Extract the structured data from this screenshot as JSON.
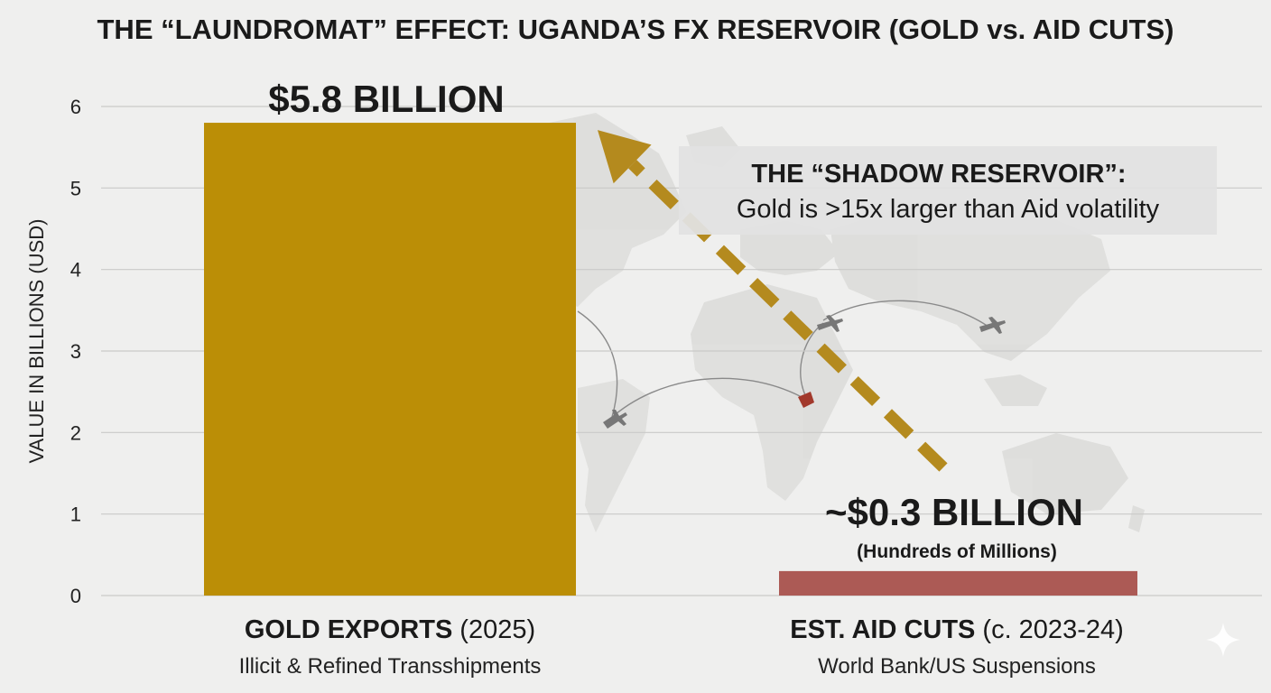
{
  "chart_data": {
    "type": "bar",
    "title": "THE “LAUNDROMAT” EFFECT: UGANDA’S FX RESERVOIR (GOLD vs. AID CUTS)",
    "ylabel": "VALUE IN BILLIONS (USD)",
    "xlabel": "",
    "ylim": [
      0,
      6
    ],
    "yticks": [
      "0",
      "1",
      "2",
      "3",
      "4",
      "5",
      "6"
    ],
    "grid": true,
    "categories": [
      {
        "name": "GOLD EXPORTS",
        "period": "(2025)",
        "subtitle": "Illicit & Refined Transshipments",
        "value": 5.8,
        "value_label": "$5.8 BILLION",
        "value_sublabel": "",
        "color": "#bb8e06"
      },
      {
        "name": "EST. AID CUTS",
        "period": "(c. 2023-24)",
        "subtitle": "World Bank/US Suspensions",
        "value": 0.3,
        "value_label": "~$0.3 BILLION",
        "value_sublabel": "(Hundreds of Millions)",
        "color": "#ac5a55"
      }
    ],
    "annotation": {
      "title": "THE “SHADOW RESERVOIR”:",
      "text": "Gold is >15x larger than Aid volatility",
      "arrow_color": "#b48a1e",
      "arrow_from": "aid bar",
      "arrow_to": "gold bar"
    }
  }
}
